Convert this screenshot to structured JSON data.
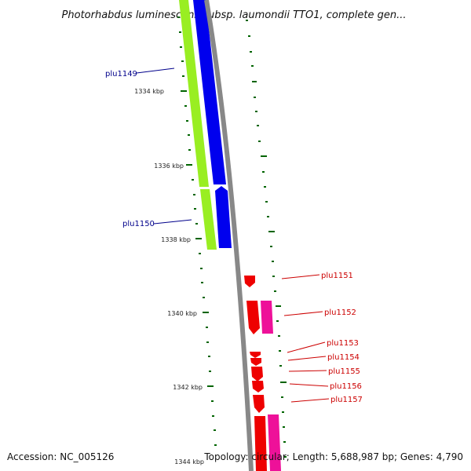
{
  "title": "Photorhabdus luminescens subsp. laumondii TTO1, complete gen...",
  "footer": {
    "accession": "Accession: NC_005126",
    "summary": "Topology: circular; Length: 5,688,987 bp; Genes: 4,790"
  },
  "colors": {
    "forward_label": "#00008b",
    "reverse_label": "#cc0000",
    "forward_cds": "#0000ee",
    "forward_gene": "#99ee22",
    "reverse_cds": "#ee0000",
    "reverse_gene": "#ee1199",
    "backbone": "#888888",
    "tick": "#006400"
  },
  "ruler": {
    "ticks": [
      {
        "kbp": 1334,
        "label": "1334 kbp"
      },
      {
        "kbp": 1336,
        "label": "1336 kbp"
      },
      {
        "kbp": 1338,
        "label": "1338 kbp"
      },
      {
        "kbp": 1340,
        "label": "1340 kbp"
      },
      {
        "kbp": 1342,
        "label": "1342 kbp"
      },
      {
        "kbp": 1344,
        "label": "1344 kbp"
      }
    ]
  },
  "genes": [
    {
      "name": "plu1149",
      "strand": "+"
    },
    {
      "name": "plu1150",
      "strand": "+"
    },
    {
      "name": "plu1151",
      "strand": "-"
    },
    {
      "name": "plu1152",
      "strand": "-"
    },
    {
      "name": "plu1153",
      "strand": "-"
    },
    {
      "name": "plu1154",
      "strand": "-"
    },
    {
      "name": "plu1155",
      "strand": "-"
    },
    {
      "name": "plu1156",
      "strand": "-"
    },
    {
      "name": "plu1157",
      "strand": "-"
    }
  ]
}
